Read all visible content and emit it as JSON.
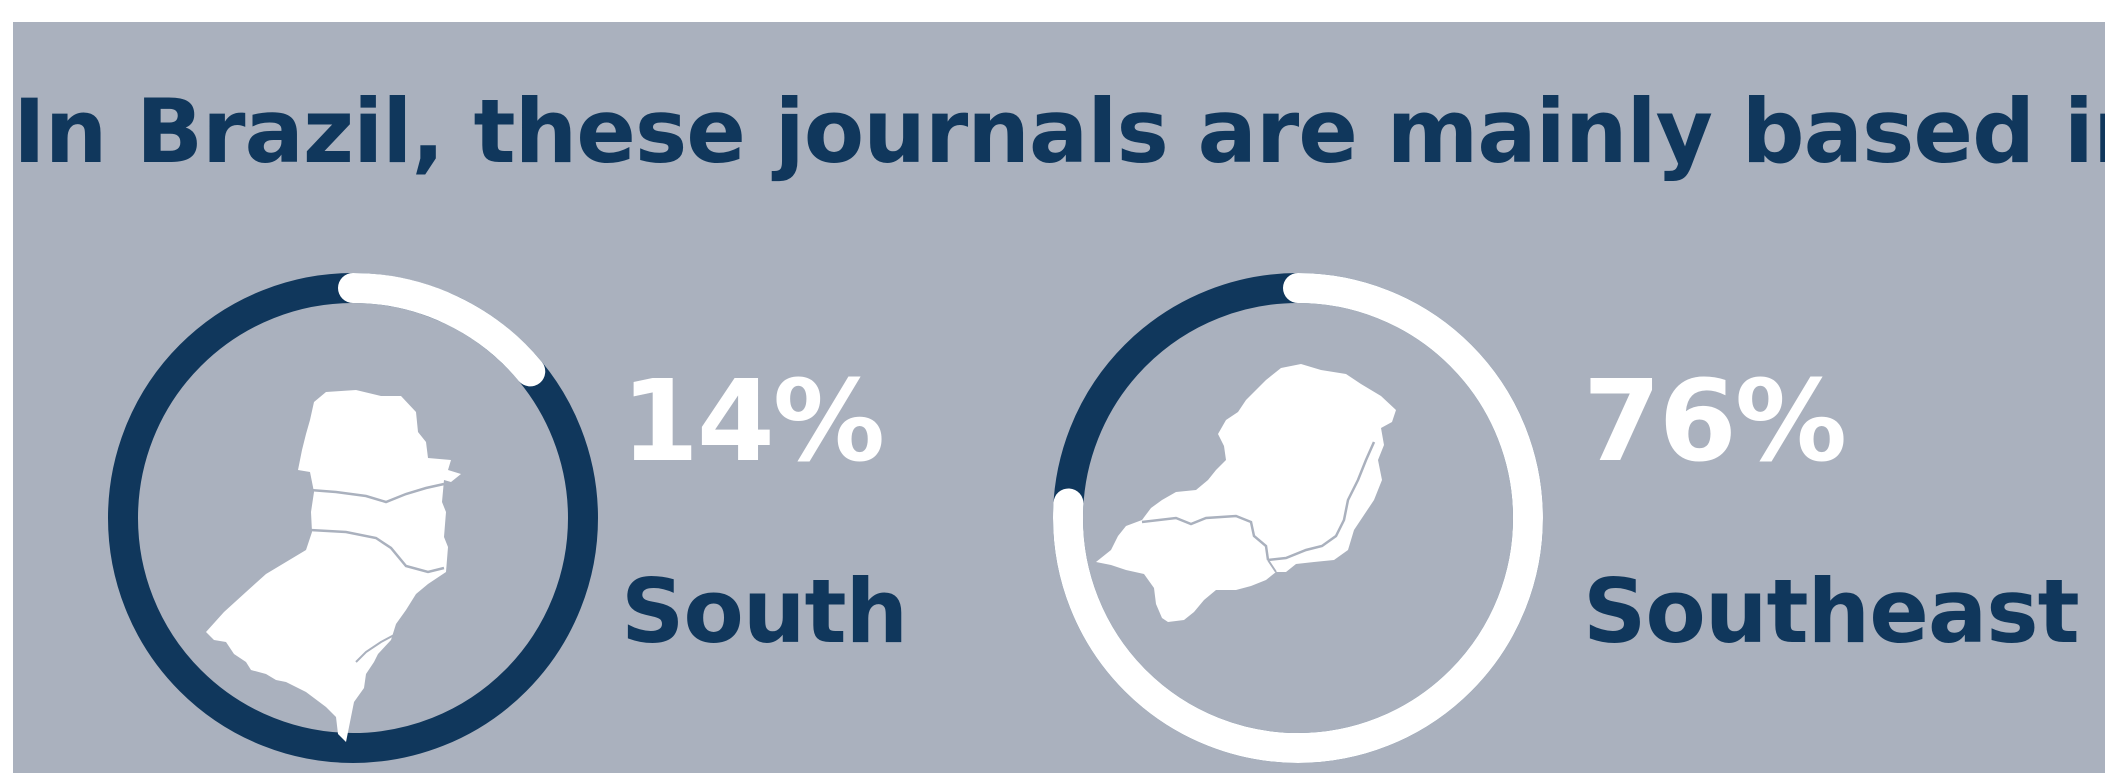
{
  "title": "In Brazil, these journals are mainly based in",
  "colors": {
    "background": "#aab1be",
    "accent": "#10375c",
    "highlight": "#ffffff"
  },
  "chart_data": {
    "type": "pie",
    "title": "In Brazil, these journals are mainly based in",
    "unit": "%",
    "items": [
      {
        "label": "South",
        "value": 14,
        "value_label": "14%",
        "map_icon": "south-region-map"
      },
      {
        "label": "Southeast",
        "value": 76,
        "value_label": "76%",
        "map_icon": "southeast-region-map"
      }
    ]
  }
}
